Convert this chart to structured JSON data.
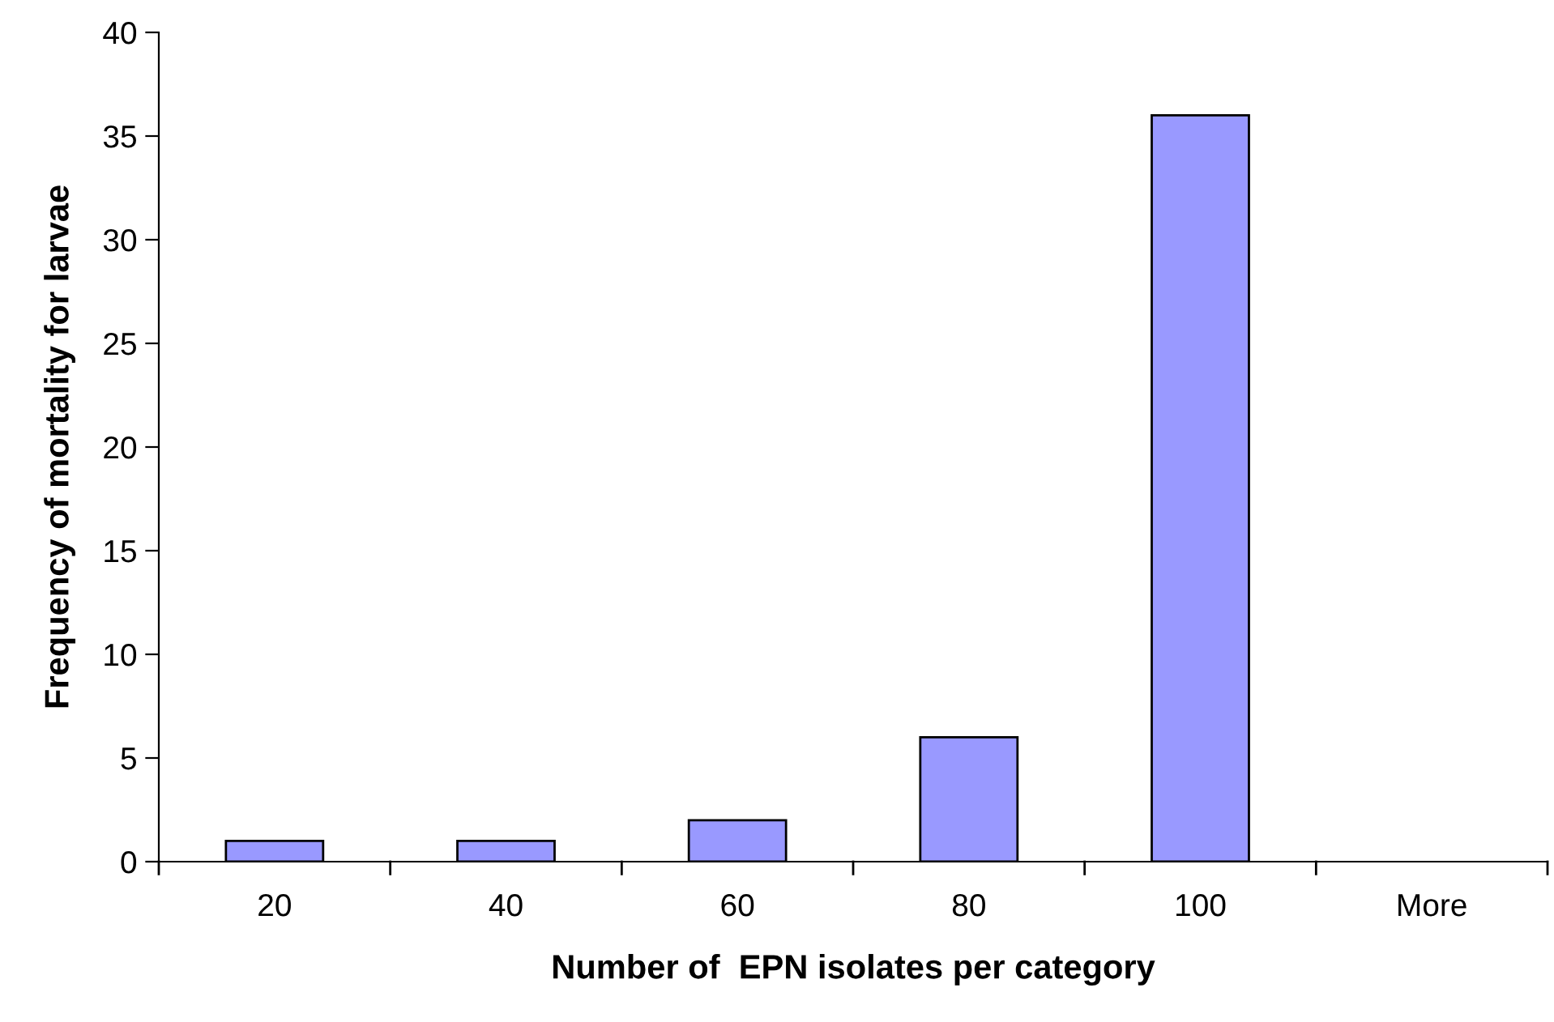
{
  "chart_data": {
    "type": "bar",
    "xlabel": "Number of  EPN isolates per category",
    "ylabel": "Frequency of mortality for larvae",
    "categories": [
      "20",
      "40",
      "60",
      "80",
      "100",
      "More"
    ],
    "values": [
      1,
      1,
      2,
      6,
      36,
      0
    ],
    "color": "#9999ff",
    "ylim": [
      0,
      40
    ],
    "yticks": [
      0,
      5,
      10,
      15,
      20,
      25,
      30,
      35,
      40
    ],
    "grid": false,
    "legend": false
  }
}
